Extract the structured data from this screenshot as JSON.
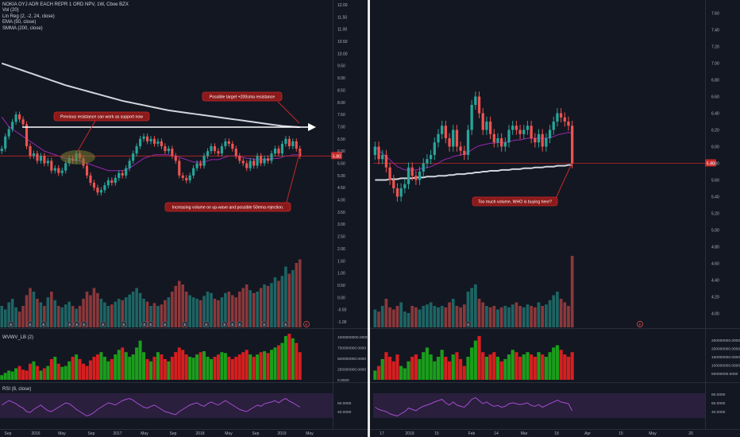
{
  "legend": {
    "symbol": "NOKIA OYJ ADR EACH REPR 1 ORD NPV, 1W, Cboe BZX",
    "indicators": [
      "Vol (20)",
      "Lin Reg (2, -2, 24, close)",
      "EMA (50, close)",
      "SMMA (200, close)"
    ]
  },
  "panes": {
    "wvwap_label": "WVWV_LB (2)",
    "rsi_label": "RSI (8, close)"
  },
  "colors": {
    "background": "#131722",
    "up": "#26a69a",
    "down": "#ef5350",
    "ema": "#9c27b0",
    "smma": "#d1d4dc",
    "price_line": "#c62828",
    "rsi_band": "#2a1f3d"
  },
  "annotations": {
    "support": "Previous resistance can work as support now",
    "target": "Possible target +200sma resistance",
    "volume": "Increasing volume on up-wave and possible 50ema rejection.",
    "buying": "Too much volume, WHO is buying here?"
  },
  "price_badge": "5.80",
  "event_marker": "E",
  "chart_data": [
    {
      "type": "candlestick",
      "title": "NOKIA OYJ ADR EACH REPR 1 ORD NPV, 1W, Cboe BZX",
      "x_ticks": [
        "Sep",
        "2016",
        "May",
        "Sep",
        "2017",
        "May",
        "Sep",
        "2018",
        "May",
        "Sep",
        "2019",
        "May"
      ],
      "y_ticks": [
        "12.00",
        "11.50",
        "11.00",
        "10.50",
        "10.00",
        "9.50",
        "9.00",
        "8.50",
        "8.00",
        "7.50",
        "7.00",
        "6.50",
        "6.00",
        "5.50",
        "5.00",
        "4.50",
        "4.00",
        "3.50",
        "3.00",
        "2.50",
        "2.00",
        "1.50",
        "1.00",
        "0.50",
        "0.00",
        "-0.50",
        "-1.00"
      ],
      "ylim": [
        -1.0,
        12.0
      ],
      "last_price": 5.8,
      "closes": [
        6.1,
        6.6,
        6.9,
        7.2,
        7.5,
        7.3,
        7.1,
        6.2,
        5.8,
        5.9,
        5.6,
        5.8,
        5.5,
        5.6,
        5.2,
        5.3,
        5.1,
        5.2,
        5.5,
        5.7,
        5.6,
        5.9,
        5.7,
        5.4,
        5.0,
        4.7,
        4.5,
        4.3,
        4.4,
        4.6,
        4.8,
        4.7,
        4.9,
        5.1,
        5.0,
        5.3,
        5.6,
        5.9,
        6.2,
        6.5,
        6.6,
        6.4,
        6.5,
        6.3,
        6.4,
        6.2,
        6.0,
        6.1,
        5.8,
        5.6,
        5.0,
        4.9,
        4.8,
        5.0,
        5.3,
        5.5,
        5.4,
        5.8,
        6.0,
        6.2,
        6.0,
        5.9,
        6.2,
        6.4,
        6.3,
        6.1,
        5.8,
        5.6,
        5.5,
        5.3,
        5.6,
        5.4,
        5.8,
        5.5,
        5.7,
        5.6,
        5.9,
        6.1,
        5.9,
        6.3,
        6.5,
        6.2,
        6.4,
        6.1,
        5.8
      ],
      "volume_scale": "relative 0-1 (no volume axis values printed)",
      "volumes": [
        0.3,
        0.25,
        0.35,
        0.4,
        0.28,
        0.22,
        0.3,
        0.45,
        0.55,
        0.5,
        0.4,
        0.35,
        0.3,
        0.42,
        0.5,
        0.38,
        0.3,
        0.28,
        0.32,
        0.36,
        0.3,
        0.26,
        0.3,
        0.4,
        0.5,
        0.45,
        0.55,
        0.48,
        0.4,
        0.35,
        0.3,
        0.32,
        0.36,
        0.4,
        0.38,
        0.42,
        0.46,
        0.5,
        0.55,
        0.48,
        0.4,
        0.36,
        0.3,
        0.34,
        0.3,
        0.32,
        0.38,
        0.42,
        0.5,
        0.58,
        0.65,
        0.6,
        0.5,
        0.45,
        0.42,
        0.4,
        0.38,
        0.44,
        0.5,
        0.48,
        0.4,
        0.38,
        0.42,
        0.48,
        0.5,
        0.45,
        0.42,
        0.5,
        0.55,
        0.6,
        0.52,
        0.48,
        0.5,
        0.55,
        0.6,
        0.58,
        0.62,
        0.7,
        0.65,
        0.72,
        0.85,
        0.75,
        0.8,
        0.9,
        0.95
      ],
      "ema50": [
        7.4,
        7.2,
        7.0,
        6.9,
        6.8,
        6.7,
        6.6,
        6.5,
        6.4,
        6.3,
        6.2,
        6.1,
        6.0,
        5.95,
        5.9,
        5.85,
        5.8,
        5.75,
        5.7,
        5.7,
        5.65,
        5.6,
        5.6,
        5.55,
        5.5,
        5.45,
        5.4,
        5.35,
        5.3,
        5.25,
        5.2,
        5.2,
        5.2,
        5.2,
        5.2,
        5.25,
        5.3,
        5.4,
        5.5,
        5.6,
        5.7,
        5.75,
        5.8,
        5.85,
        5.85,
        5.85,
        5.85,
        5.85,
        5.8,
        5.8,
        5.75,
        5.7,
        5.65,
        5.6,
        5.55,
        5.55,
        5.55,
        5.55,
        5.6,
        5.65,
        5.65,
        5.65,
        5.7,
        5.75,
        5.8,
        5.8,
        5.8,
        5.75,
        5.75,
        5.7,
        5.7,
        5.65,
        5.65,
        5.65,
        5.65,
        5.65,
        5.7,
        5.7,
        5.7,
        5.75,
        5.8,
        5.8,
        5.85,
        5.85,
        5.85
      ],
      "smma200": [
        9.6,
        9.55,
        9.5,
        9.45,
        9.4,
        9.35,
        9.3,
        9.25,
        9.2,
        9.15,
        9.1,
        9.05,
        9.0,
        8.95,
        8.9,
        8.85,
        8.8,
        8.75,
        8.7,
        8.66,
        8.62,
        8.58,
        8.54,
        8.5,
        8.46,
        8.42,
        8.38,
        8.34,
        8.3,
        8.26,
        8.22,
        8.18,
        8.14,
        8.1,
        8.06,
        8.03,
        8.0,
        7.97,
        7.94,
        7.91,
        7.88,
        7.85,
        7.82,
        7.79,
        7.76,
        7.73,
        7.7,
        7.67,
        7.65,
        7.63,
        7.61,
        7.59,
        7.57,
        7.55,
        7.53,
        7.51,
        7.49,
        7.47,
        7.45,
        7.43,
        7.41,
        7.39,
        7.37,
        7.35,
        7.33,
        7.31,
        7.29,
        7.27,
        7.25,
        7.23,
        7.21,
        7.19,
        7.17,
        7.15,
        7.13,
        7.11,
        7.09,
        7.07,
        7.05,
        7.03,
        7.02,
        7.01,
        7.0,
        6.99,
        6.98
      ],
      "rsi": [
        55,
        60,
        65,
        62,
        58,
        52,
        48,
        40,
        38,
        45,
        50,
        55,
        48,
        42,
        40,
        45,
        50,
        55,
        60,
        58,
        52,
        45,
        40,
        35,
        30,
        33,
        38,
        45,
        50,
        55,
        60,
        58,
        55,
        60,
        65,
        68,
        70,
        66,
        60,
        55,
        50,
        48,
        52,
        55,
        50,
        45,
        40,
        38,
        35,
        33,
        40,
        45,
        50,
        55,
        58,
        60,
        55,
        52,
        58,
        62,
        58,
        55,
        60,
        65,
        60,
        55,
        50,
        45,
        42,
        40,
        45,
        50,
        55,
        52,
        58,
        60,
        62,
        65,
        60,
        66,
        70,
        64,
        60,
        55,
        50
      ],
      "wvwv": [
        0.1,
        0.15,
        0.2,
        0.18,
        0.25,
        0.3,
        0.22,
        0.2,
        0.35,
        0.4,
        0.3,
        0.2,
        0.25,
        0.3,
        0.45,
        0.5,
        0.35,
        0.28,
        0.3,
        0.4,
        0.5,
        0.55,
        0.45,
        0.35,
        0.3,
        0.42,
        0.5,
        0.55,
        0.6,
        0.5,
        0.4,
        0.45,
        0.55,
        0.65,
        0.7,
        0.6,
        0.5,
        0.55,
        0.7,
        0.85,
        0.6,
        0.45,
        0.4,
        0.5,
        0.6,
        0.55,
        0.45,
        0.4,
        0.5,
        0.6,
        0.7,
        0.65,
        0.55,
        0.5,
        0.48,
        0.55,
        0.6,
        0.62,
        0.5,
        0.45,
        0.5,
        0.55,
        0.6,
        0.58,
        0.5,
        0.45,
        0.5,
        0.55,
        0.6,
        0.65,
        0.55,
        0.5,
        0.55,
        0.6,
        0.62,
        0.58,
        0.65,
        0.7,
        0.75,
        0.8,
        0.95,
        1.0,
        0.9,
        0.8,
        0.6
      ],
      "wvwv_ticks": [
        "1000000000.0000",
        "750000000.0000",
        "500000000.0000",
        "250000000.0000",
        "0.0000"
      ],
      "rsi_ticks": [
        "60.0000",
        "40.0000"
      ]
    },
    {
      "type": "candlestick",
      "x_ticks": [
        "17",
        "2019",
        "15",
        "Feb",
        "14",
        "Mar",
        "18",
        "Apr",
        "15",
        "May",
        "20"
      ],
      "y_ticks": [
        "7.60",
        "7.40",
        "7.20",
        "7.00",
        "6.80",
        "6.60",
        "6.40",
        "6.20",
        "6.00",
        "5.80",
        "5.60",
        "5.40",
        "5.20",
        "5.00",
        "4.80",
        "4.60",
        "4.40",
        "4.20",
        "4.00"
      ],
      "ylim": [
        3.9,
        7.7
      ],
      "last_price": 5.8,
      "closes": [
        6.0,
        5.85,
        5.9,
        5.75,
        5.6,
        5.5,
        5.4,
        5.5,
        5.55,
        5.75,
        5.65,
        5.6,
        5.7,
        5.8,
        5.85,
        5.9,
        6.05,
        6.15,
        6.25,
        6.1,
        6.0,
        6.2,
        6.0,
        5.95,
        5.9,
        6.2,
        6.5,
        6.6,
        6.4,
        6.2,
        6.3,
        6.15,
        6.05,
        6.1,
        6.0,
        6.05,
        6.2,
        6.25,
        6.2,
        6.15,
        6.2,
        6.25,
        6.1,
        6.05,
        6.15,
        6.0,
        6.1,
        6.2,
        6.3,
        6.4,
        6.35,
        6.3,
        6.25,
        5.8
      ],
      "volume_scale": "relative 0-1 (no volume axis values printed)",
      "volumes": [
        0.25,
        0.22,
        0.3,
        0.4,
        0.28,
        0.25,
        0.3,
        0.35,
        0.22,
        0.2,
        0.3,
        0.28,
        0.25,
        0.3,
        0.32,
        0.35,
        0.3,
        0.28,
        0.3,
        0.28,
        0.35,
        0.4,
        0.3,
        0.28,
        0.32,
        0.5,
        0.55,
        0.6,
        0.4,
        0.35,
        0.3,
        0.28,
        0.3,
        0.25,
        0.28,
        0.3,
        0.28,
        0.32,
        0.35,
        0.3,
        0.28,
        0.32,
        0.3,
        0.28,
        0.35,
        0.3,
        0.32,
        0.38,
        0.45,
        0.5,
        0.4,
        0.35,
        0.3,
        1.0
      ],
      "ema50": [
        6.0,
        5.95,
        5.92,
        5.88,
        5.84,
        5.8,
        5.76,
        5.74,
        5.72,
        5.72,
        5.72,
        5.72,
        5.73,
        5.74,
        5.75,
        5.76,
        5.78,
        5.8,
        5.83,
        5.85,
        5.86,
        5.88,
        5.89,
        5.9,
        5.91,
        5.93,
        5.96,
        5.99,
        6.01,
        6.02,
        6.03,
        6.04,
        6.04,
        6.05,
        6.05,
        6.05,
        6.06,
        6.07,
        6.08,
        6.08,
        6.09,
        6.1,
        6.1,
        6.1,
        6.1,
        6.1,
        6.1,
        6.11,
        6.12,
        6.14,
        6.15,
        6.16,
        6.17,
        6.16
      ],
      "smma200": [
        5.6,
        5.6,
        5.6,
        5.6,
        5.61,
        5.61,
        5.61,
        5.62,
        5.62,
        5.62,
        5.62,
        5.63,
        5.63,
        5.63,
        5.64,
        5.64,
        5.64,
        5.65,
        5.65,
        5.65,
        5.66,
        5.66,
        5.67,
        5.67,
        5.67,
        5.68,
        5.68,
        5.69,
        5.69,
        5.7,
        5.7,
        5.71,
        5.71,
        5.71,
        5.72,
        5.72,
        5.72,
        5.73,
        5.73,
        5.73,
        5.74,
        5.74,
        5.74,
        5.75,
        5.75,
        5.75,
        5.76,
        5.76,
        5.76,
        5.77,
        5.77,
        5.77,
        5.78,
        5.78
      ],
      "rsi": [
        50,
        45,
        42,
        40,
        35,
        32,
        30,
        35,
        40,
        48,
        45,
        42,
        48,
        52,
        55,
        58,
        62,
        65,
        68,
        60,
        55,
        62,
        55,
        52,
        50,
        58,
        68,
        72,
        65,
        58,
        62,
        56,
        52,
        54,
        50,
        52,
        58,
        60,
        58,
        56,
        58,
        60,
        54,
        52,
        56,
        50,
        54,
        58,
        62,
        66,
        62,
        60,
        58,
        42
      ],
      "wvwv": [
        0.2,
        0.3,
        0.45,
        0.6,
        0.5,
        0.4,
        0.55,
        0.3,
        0.25,
        0.4,
        0.5,
        0.55,
        0.45,
        0.6,
        0.7,
        0.55,
        0.4,
        0.5,
        0.65,
        0.5,
        0.4,
        0.55,
        0.6,
        0.45,
        0.3,
        0.5,
        0.7,
        0.85,
        0.95,
        0.6,
        0.5,
        0.55,
        0.6,
        0.5,
        0.4,
        0.45,
        0.55,
        0.65,
        0.6,
        0.5,
        0.55,
        0.6,
        0.55,
        0.5,
        0.6,
        0.55,
        0.5,
        0.6,
        0.7,
        0.75,
        0.65,
        0.55,
        0.5,
        0.6
      ],
      "wvwv_ticks": [
        "250000000.0000",
        "200000000.0000",
        "150000000.0000",
        "100000000.0000",
        "50000000.0000"
      ],
      "rsi_ticks": [
        "80.0000",
        "60.0000",
        "40.0000"
      ]
    }
  ]
}
